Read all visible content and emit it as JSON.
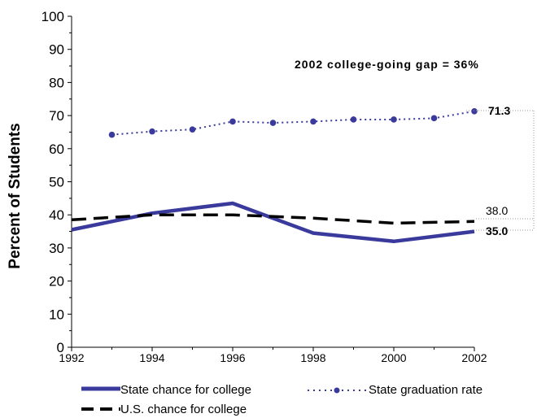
{
  "chart_data": {
    "type": "line",
    "title": "",
    "ylabel": "Percent of Students",
    "xlabel": "",
    "ylim": [
      0,
      100
    ],
    "yticks": [
      "0",
      "10",
      "20",
      "30",
      "40",
      "50",
      "60",
      "70",
      "80",
      "90",
      "100"
    ],
    "xlim": [
      1992,
      2002
    ],
    "xticks": [
      "1992",
      "1994",
      "1996",
      "1998",
      "2000",
      "2002"
    ],
    "grid": false,
    "legend_position": "bottom",
    "annotation": "2002 college-going gap = 36%",
    "series": [
      {
        "name": "State chance for college",
        "style": "solid",
        "color": "#3a3a9c",
        "x": [
          1992,
          1994,
          1996,
          1998,
          2000,
          2002
        ],
        "y": [
          35.5,
          40.5,
          43.5,
          34.5,
          32.0,
          35.0
        ],
        "end_label": "35.0"
      },
      {
        "name": "State graduation rate",
        "style": "dotted-markers",
        "color": "#3a3a9c",
        "x": [
          1993,
          1994,
          1995,
          1996,
          1997,
          1998,
          1999,
          2000,
          2001,
          2002
        ],
        "y": [
          64.2,
          65.2,
          65.8,
          68.2,
          67.8,
          68.2,
          68.8,
          68.8,
          69.2,
          71.3
        ],
        "end_label": "71.3"
      },
      {
        "name": "U.S. chance for college",
        "style": "dashed",
        "color": "#000000",
        "x": [
          1992,
          1994,
          1996,
          1998,
          2000,
          2002
        ],
        "y": [
          38.5,
          40.0,
          40.0,
          39.0,
          37.5,
          38.0
        ],
        "end_label": "38.0"
      }
    ]
  }
}
